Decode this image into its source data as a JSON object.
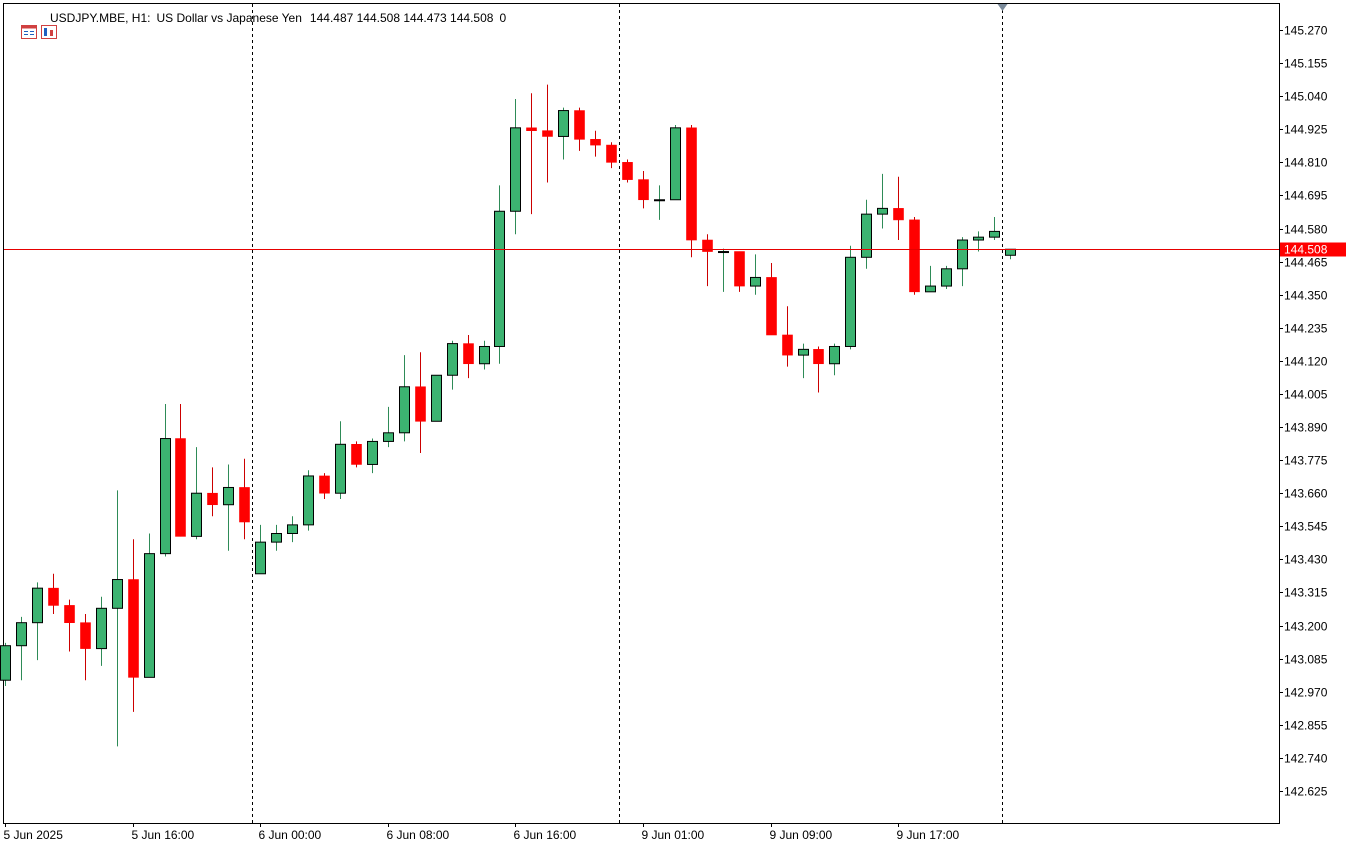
{
  "header": {
    "symbol": "USDJPY.MBE, H1:",
    "description": "US Dollar vs Japanese Yen",
    "ohlc": "144.487 144.508 144.473 144.508",
    "volume": "0",
    "icons": [
      "chart-window-icon",
      "chart-properties-icon"
    ]
  },
  "colors": {
    "bull": "#3cb371",
    "bear": "#ff0000",
    "wick_bull": "#2e8b57",
    "wick_bear": "#cc0000",
    "outline": "#000000",
    "price_line": "#e60000",
    "price_label_bg": "#ff0000",
    "price_label_text": "#ffffff",
    "axis_text": "#000000",
    "separator": "#000000"
  },
  "chart_data": {
    "type": "candlestick",
    "symbol": "USDJPY.MBE",
    "timeframe": "H1",
    "current_price": 144.508,
    "current_price_label": "144.508",
    "ylim": [
      142.52,
      145.33
    ],
    "y_ticks": [
      "145.270",
      "145.155",
      "145.040",
      "144.925",
      "144.810",
      "144.695",
      "144.580",
      "144.465",
      "144.350",
      "144.235",
      "144.120",
      "144.005",
      "143.890",
      "143.775",
      "143.660",
      "143.545",
      "143.430",
      "143.315",
      "143.200",
      "143.085",
      "142.970",
      "142.855",
      "142.740",
      "142.625"
    ],
    "x_ticks": [
      {
        "bar": 0,
        "label": "5 Jun 2025"
      },
      {
        "bar": 8,
        "label": "5 Jun 16:00"
      },
      {
        "bar": 16,
        "label": "6 Jun 00:00"
      },
      {
        "bar": 24,
        "label": "6 Jun 08:00"
      },
      {
        "bar": 32,
        "label": "6 Jun 16:00"
      },
      {
        "bar": 40,
        "label": "9 Jun 01:00"
      },
      {
        "bar": 48,
        "label": "9 Jun 09:00"
      },
      {
        "bar": 56,
        "label": "9 Jun 17:00"
      }
    ],
    "day_separators_after_bar": [
      15.5,
      38.5
    ],
    "cursor_line_bar": 62.5,
    "candles": [
      [
        143.01,
        143.14,
        142.99,
        143.13
      ],
      [
        143.13,
        143.23,
        143.01,
        143.21
      ],
      [
        143.21,
        143.35,
        143.08,
        143.33
      ],
      [
        143.33,
        143.38,
        143.24,
        143.27
      ],
      [
        143.27,
        143.29,
        143.11,
        143.21
      ],
      [
        143.21,
        143.24,
        143.01,
        143.12
      ],
      [
        143.12,
        143.3,
        143.06,
        143.26
      ],
      [
        143.26,
        143.67,
        142.78,
        143.36
      ],
      [
        143.36,
        143.5,
        142.9,
        143.02
      ],
      [
        143.02,
        143.52,
        143.02,
        143.45
      ],
      [
        143.45,
        143.97,
        143.44,
        143.85
      ],
      [
        143.85,
        143.97,
        143.51,
        143.51
      ],
      [
        143.51,
        143.82,
        143.5,
        143.66
      ],
      [
        143.66,
        143.75,
        143.58,
        143.62
      ],
      [
        143.62,
        143.76,
        143.46,
        143.68
      ],
      [
        143.68,
        143.78,
        143.5,
        143.56
      ],
      [
        143.38,
        143.55,
        143.38,
        143.49
      ],
      [
        143.49,
        143.55,
        143.46,
        143.52
      ],
      [
        143.52,
        143.58,
        143.49,
        143.55
      ],
      [
        143.55,
        143.74,
        143.53,
        143.72
      ],
      [
        143.72,
        143.73,
        143.64,
        143.66
      ],
      [
        143.66,
        143.91,
        143.64,
        143.83
      ],
      [
        143.83,
        143.84,
        143.75,
        143.76
      ],
      [
        143.76,
        143.85,
        143.73,
        143.84
      ],
      [
        143.84,
        143.96,
        143.82,
        143.87
      ],
      [
        143.87,
        144.14,
        143.84,
        144.03
      ],
      [
        144.03,
        144.15,
        143.8,
        143.91
      ],
      [
        143.91,
        144.06,
        143.91,
        144.07
      ],
      [
        144.07,
        144.19,
        144.02,
        144.18
      ],
      [
        144.18,
        144.21,
        144.06,
        144.11
      ],
      [
        144.11,
        144.19,
        144.09,
        144.17
      ],
      [
        144.17,
        144.73,
        144.11,
        144.64
      ],
      [
        144.64,
        145.03,
        144.56,
        144.93
      ],
      [
        144.93,
        145.05,
        144.63,
        144.92
      ],
      [
        144.92,
        145.08,
        144.74,
        144.9
      ],
      [
        144.9,
        145.0,
        144.82,
        144.99
      ],
      [
        144.99,
        145.0,
        144.85,
        144.89
      ],
      [
        144.89,
        144.92,
        144.83,
        144.87
      ],
      [
        144.87,
        144.88,
        144.79,
        144.81
      ],
      [
        144.81,
        144.82,
        144.74,
        144.75
      ],
      [
        144.75,
        144.78,
        144.65,
        144.68
      ],
      [
        144.68,
        144.73,
        144.61,
        144.68
      ],
      [
        144.68,
        144.94,
        144.68,
        144.93
      ],
      [
        144.93,
        144.94,
        144.48,
        144.54
      ],
      [
        144.54,
        144.56,
        144.38,
        144.5
      ],
      [
        144.5,
        144.51,
        144.36,
        144.5
      ],
      [
        144.5,
        144.5,
        144.36,
        144.38
      ],
      [
        144.38,
        144.49,
        144.35,
        144.41
      ],
      [
        144.41,
        144.46,
        144.21,
        144.21
      ],
      [
        144.21,
        144.31,
        144.1,
        144.14
      ],
      [
        144.14,
        144.18,
        144.06,
        144.16
      ],
      [
        144.16,
        144.17,
        144.01,
        144.11
      ],
      [
        144.11,
        144.18,
        144.07,
        144.17
      ],
      [
        144.17,
        144.52,
        144.16,
        144.48
      ],
      [
        144.48,
        144.68,
        144.44,
        144.63
      ],
      [
        144.63,
        144.77,
        144.58,
        144.65
      ],
      [
        144.65,
        144.76,
        144.54,
        144.61
      ],
      [
        144.61,
        144.62,
        144.35,
        144.36
      ],
      [
        144.36,
        144.45,
        144.36,
        144.38
      ],
      [
        144.38,
        144.45,
        144.37,
        144.44
      ],
      [
        144.44,
        144.55,
        144.38,
        144.54
      ],
      [
        144.54,
        144.57,
        144.5,
        144.55
      ],
      [
        144.55,
        144.62,
        144.54,
        144.57
      ],
      [
        144.487,
        144.508,
        144.473,
        144.508
      ]
    ]
  }
}
